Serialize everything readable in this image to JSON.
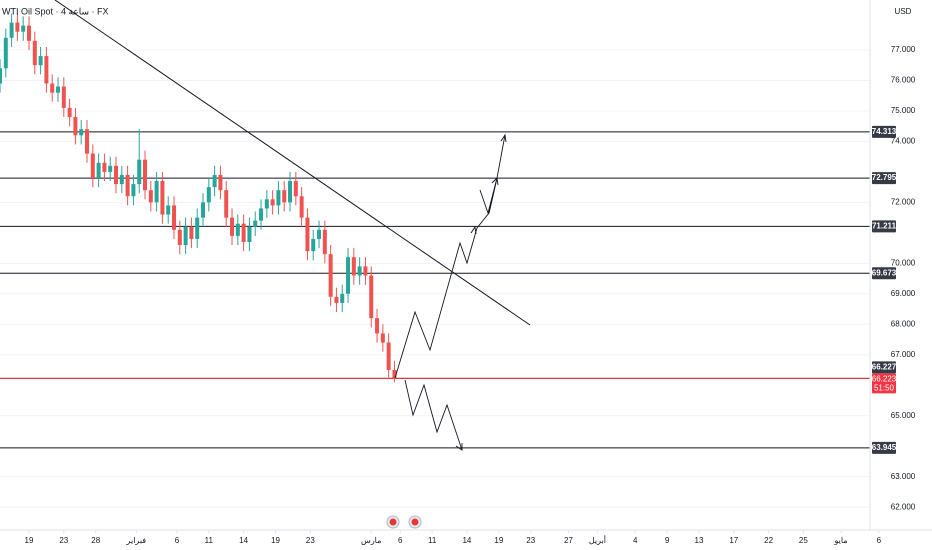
{
  "chart_data": {
    "type": "candlestick",
    "title": "WTI Oil Spot · 4 ساعة · FX",
    "currency": "USD",
    "up_color": "#26a69a",
    "down_color": "#ef5350",
    "grid": true,
    "x": [
      0,
      2,
      4,
      6,
      8,
      10,
      12,
      14,
      16,
      18,
      20,
      22,
      24,
      26,
      28,
      30,
      32,
      34,
      36,
      38,
      40,
      42,
      44,
      46,
      48,
      50,
      52,
      54,
      56,
      58,
      60,
      62,
      64,
      66,
      68,
      70,
      72,
      74,
      76,
      78,
      80,
      82,
      84,
      86,
      88,
      90,
      92,
      94,
      96,
      98,
      100,
      102,
      104,
      106,
      108,
      110,
      112,
      114,
      116,
      118,
      120,
      122,
      124,
      126,
      128,
      130,
      132,
      134,
      136
    ],
    "open": [
      75.9,
      76.4,
      77.4,
      77.9,
      77.6,
      77.8,
      77.3,
      76.5,
      76.8,
      75.9,
      75.6,
      75.8,
      75.1,
      74.8,
      74.2,
      74.4,
      73.6,
      72.8,
      73.3,
      73.0,
      73.2,
      72.6,
      72.9,
      72.2,
      72.6,
      73.4,
      72.4,
      72.0,
      72.7,
      71.6,
      71.9,
      71.1,
      70.6,
      71.2,
      70.8,
      71.5,
      72.0,
      72.5,
      72.9,
      72.4,
      71.5,
      70.9,
      71.3,
      70.7,
      71.2,
      71.4,
      71.8,
      72.1,
      71.9,
      72.4,
      72.0,
      72.7,
      72.2,
      71.5,
      70.4,
      70.8,
      71.1,
      70.3,
      68.9,
      68.7,
      69.0,
      70.2,
      69.6,
      69.9,
      69.6,
      68.2,
      67.7,
      67.4,
      66.5
    ],
    "high": [
      76.7,
      77.7,
      78.2,
      78.2,
      78.1,
      78.1,
      77.6,
      77.1,
      77.1,
      76.2,
      76.1,
      76.1,
      75.4,
      75.1,
      74.7,
      74.7,
      73.9,
      73.6,
      73.6,
      73.5,
      73.5,
      73.2,
      73.2,
      72.9,
      74.4,
      73.7,
      72.7,
      73.0,
      73.0,
      72.2,
      72.2,
      71.4,
      71.5,
      71.5,
      71.8,
      72.3,
      72.8,
      73.2,
      73.2,
      72.7,
      71.8,
      71.6,
      71.6,
      71.5,
      71.7,
      72.1,
      72.4,
      72.4,
      72.7,
      72.7,
      73.0,
      73.0,
      72.5,
      71.8,
      71.1,
      71.4,
      71.4,
      70.6,
      69.2,
      69.3,
      70.5,
      70.5,
      70.2,
      70.2,
      69.9,
      68.5,
      68.0,
      67.7,
      66.8
    ],
    "low": [
      75.6,
      76.1,
      77.1,
      77.3,
      77.3,
      77.0,
      76.2,
      76.2,
      75.6,
      75.3,
      75.3,
      74.8,
      74.5,
      73.9,
      73.9,
      73.3,
      72.5,
      72.5,
      72.7,
      72.7,
      72.3,
      72.3,
      71.9,
      71.9,
      72.3,
      72.1,
      71.7,
      71.7,
      71.3,
      71.3,
      70.8,
      70.3,
      70.3,
      70.5,
      70.5,
      71.2,
      71.7,
      72.2,
      72.1,
      71.2,
      70.6,
      70.6,
      70.4,
      70.4,
      70.9,
      71.1,
      71.5,
      71.6,
      71.6,
      71.7,
      71.7,
      71.9,
      71.2,
      70.1,
      70.1,
      70.5,
      70.0,
      68.6,
      68.4,
      68.4,
      68.7,
      69.3,
      69.3,
      69.3,
      67.9,
      67.4,
      67.1,
      66.2,
      66.1
    ],
    "close": [
      76.4,
      77.4,
      77.9,
      77.6,
      77.8,
      77.3,
      76.5,
      76.8,
      75.9,
      75.6,
      75.8,
      75.1,
      74.8,
      74.2,
      74.4,
      73.6,
      72.8,
      73.3,
      73.0,
      73.2,
      72.6,
      72.9,
      72.2,
      72.6,
      73.4,
      72.4,
      72.0,
      72.7,
      71.6,
      71.9,
      71.1,
      70.6,
      71.2,
      70.8,
      71.5,
      72.0,
      72.5,
      72.9,
      72.4,
      71.5,
      70.9,
      71.3,
      70.7,
      71.2,
      71.4,
      71.8,
      72.1,
      71.9,
      72.4,
      72.0,
      72.7,
      72.2,
      71.5,
      70.4,
      70.8,
      71.1,
      70.3,
      68.9,
      68.7,
      69.0,
      70.2,
      69.6,
      69.9,
      69.6,
      68.2,
      67.7,
      67.4,
      66.5,
      66.23
    ],
    "xlim": [
      0,
      321
    ],
    "xticks": [
      {
        "value": 10,
        "label": "19"
      },
      {
        "value": 22,
        "label": "23"
      },
      {
        "value": 33,
        "label": "28"
      },
      {
        "value": 47,
        "label": "فبراير"
      },
      {
        "value": 61,
        "label": "6"
      },
      {
        "value": 72,
        "label": "11"
      },
      {
        "value": 84,
        "label": "14"
      },
      {
        "value": 95,
        "label": "19"
      },
      {
        "value": 107,
        "label": "23"
      },
      {
        "value": 128,
        "label": "مارس"
      },
      {
        "value": 138,
        "label": "6"
      },
      {
        "value": 149,
        "label": "11"
      },
      {
        "value": 161,
        "label": "14"
      },
      {
        "value": 172,
        "label": "19"
      },
      {
        "value": 183,
        "label": "23"
      },
      {
        "value": 196,
        "label": "27"
      },
      {
        "value": 206,
        "label": "أبريل"
      },
      {
        "value": 219,
        "label": "4"
      },
      {
        "value": 230,
        "label": "9"
      },
      {
        "value": 241,
        "label": "13"
      },
      {
        "value": 253,
        "label": "17"
      },
      {
        "value": 265,
        "label": "22"
      },
      {
        "value": 277,
        "label": "25"
      },
      {
        "value": 290,
        "label": "مايو"
      },
      {
        "value": 303,
        "label": "6"
      }
    ],
    "ylim": [
      61.25,
      78.64
    ],
    "yticks": [
      {
        "value": 62,
        "label": "62.000"
      },
      {
        "value": 63,
        "label": "63.000"
      },
      {
        "value": 65,
        "label": "65.000"
      },
      {
        "value": 67,
        "label": "67.000"
      },
      {
        "value": 68,
        "label": "68.000"
      },
      {
        "value": 69,
        "label": "69.000"
      },
      {
        "value": 70,
        "label": "70.000"
      },
      {
        "value": 72,
        "label": "72.000"
      },
      {
        "value": 74,
        "label": "74.000"
      },
      {
        "value": 75,
        "label": "75.000"
      },
      {
        "value": 76,
        "label": "76.000"
      },
      {
        "value": 77,
        "label": "77.000"
      }
    ],
    "levels": [
      74.313,
      72.795,
      71.211,
      69.673,
      66.227,
      63.945
    ],
    "price_line": {
      "value": 66.223,
      "color": "#f23645",
      "countdown": "51:50"
    }
  }
}
